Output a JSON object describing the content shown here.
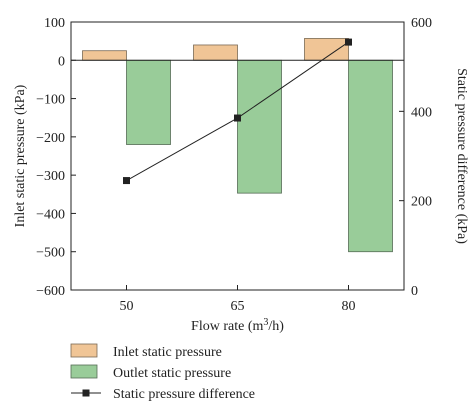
{
  "chart_data": {
    "type": "bar",
    "categories": [
      "50",
      "65",
      "80"
    ],
    "xlabel_prefix": "Flow rate (m",
    "xlabel_sup": "3",
    "xlabel_suffix": "/h)",
    "ylabel_left": "Inlet static pressure (kPa)",
    "ylabel_right": "Static pressure difference (kPa)",
    "ylim_left": [
      -600,
      100
    ],
    "yticks_left": [
      "100",
      "0",
      "−100",
      "−200",
      "−300",
      "−400",
      "−500",
      "−600"
    ],
    "ylim_right": [
      0,
      600
    ],
    "yticks_right": [
      "600",
      "400",
      "200",
      "0"
    ],
    "series": [
      {
        "name": "Inlet static pressure",
        "kind": "bar",
        "axis": "left",
        "color": "#f0c596",
        "values": [
          25,
          40,
          57
        ]
      },
      {
        "name": "Outlet static pressure",
        "kind": "bar",
        "axis": "left",
        "color": "#99cc99",
        "values": [
          -220,
          -347,
          -500
        ]
      },
      {
        "name": "Static pressure difference",
        "kind": "line",
        "axis": "right",
        "color": "#222222",
        "marker": "square",
        "values": [
          245,
          385,
          555
        ]
      }
    ],
    "legend_position": "bottom-left"
  }
}
